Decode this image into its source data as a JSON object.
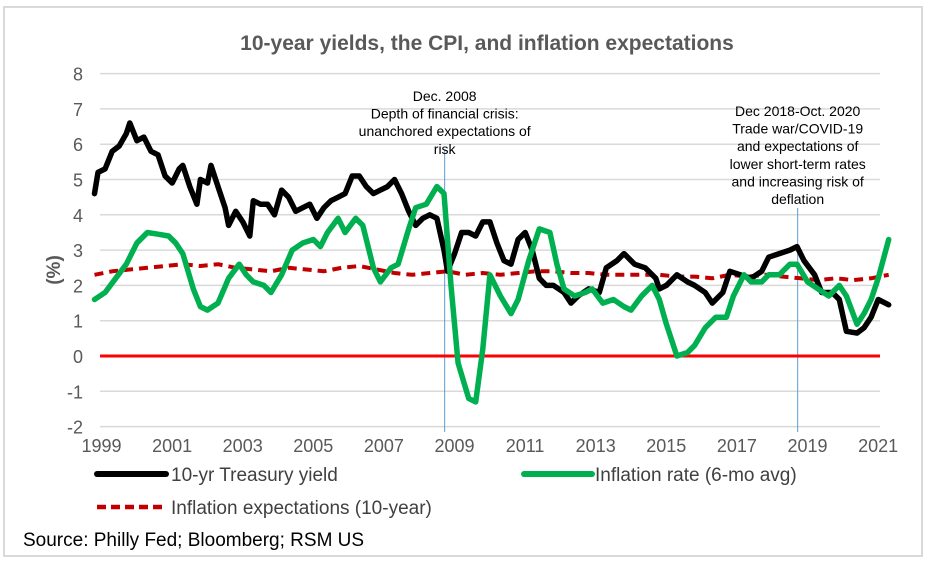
{
  "chart_data": {
    "type": "line",
    "title": "10-year yields, the CPI, and inflation expectations",
    "xlabel": "",
    "ylabel": "(%)",
    "ylim": [
      -2,
      8
    ],
    "xlim": [
      1999,
      2021.6
    ],
    "yticks": [
      "8",
      "7",
      "6",
      "5",
      "4",
      "3",
      "2",
      "1",
      "0",
      "-1",
      "-2"
    ],
    "ytick_values": [
      8,
      7,
      6,
      5,
      4,
      3,
      2,
      1,
      0,
      -1,
      -2
    ],
    "xticks": [
      "1999",
      "2001",
      "2003",
      "2005",
      "2007",
      "2009",
      "2011",
      "2013",
      "2015",
      "2017",
      "2019",
      "2021"
    ],
    "xtick_values": [
      1999,
      2001,
      2003,
      2005,
      2007,
      2009,
      2011,
      2013,
      2015,
      2017,
      2019,
      2021
    ],
    "grid": true,
    "legend_position": "bottom",
    "zero_line_color": "#ff0000",
    "series": [
      {
        "name": "10-yr Treasury yield",
        "color": "#000000",
        "style": "solid",
        "x": [
          1999.0,
          1999.1,
          1999.3,
          1999.5,
          1999.7,
          1999.9,
          2000.0,
          2000.2,
          2000.4,
          2000.6,
          2000.8,
          2001.0,
          2001.2,
          2001.4,
          2001.5,
          2001.7,
          2001.9,
          2002.0,
          2002.2,
          2002.3,
          2002.5,
          2002.7,
          2002.8,
          2003.0,
          2003.2,
          2003.4,
          2003.5,
          2003.7,
          2003.9,
          2004.1,
          2004.3,
          2004.5,
          2004.7,
          2004.9,
          2005.1,
          2005.3,
          2005.5,
          2005.7,
          2005.9,
          2006.1,
          2006.3,
          2006.5,
          2006.7,
          2006.9,
          2007.1,
          2007.3,
          2007.5,
          2007.7,
          2007.9,
          2008.1,
          2008.3,
          2008.5,
          2008.7,
          2008.9,
          2009.0,
          2009.2,
          2009.4,
          2009.6,
          2009.8,
          2010.0,
          2010.2,
          2010.4,
          2010.6,
          2010.8,
          2011.0,
          2011.2,
          2011.4,
          2011.6,
          2011.8,
          2012.0,
          2012.3,
          2012.5,
          2012.7,
          2013.0,
          2013.3,
          2013.5,
          2013.8,
          2014.0,
          2014.3,
          2014.6,
          2014.9,
          2015.0,
          2015.2,
          2015.5,
          2015.8,
          2016.0,
          2016.3,
          2016.5,
          2016.8,
          2017.0,
          2017.3,
          2017.6,
          2017.9,
          2018.1,
          2018.4,
          2018.7,
          2018.9,
          2019.1,
          2019.4,
          2019.6,
          2019.9,
          2020.1,
          2020.3,
          2020.6,
          2020.8,
          2021.0,
          2021.2,
          2021.5
        ],
        "values": [
          4.6,
          5.2,
          5.3,
          5.8,
          5.95,
          6.3,
          6.6,
          6.1,
          6.2,
          5.8,
          5.7,
          5.1,
          4.9,
          5.3,
          5.4,
          4.8,
          4.3,
          5.0,
          4.9,
          5.4,
          4.8,
          4.2,
          3.7,
          4.1,
          3.8,
          3.4,
          4.4,
          4.3,
          4.3,
          4.0,
          4.7,
          4.5,
          4.1,
          4.2,
          4.3,
          3.9,
          4.2,
          4.4,
          4.5,
          4.6,
          5.1,
          5.1,
          4.8,
          4.6,
          4.7,
          4.8,
          5.0,
          4.6,
          4.1,
          3.7,
          3.9,
          4.0,
          3.9,
          3.0,
          2.4,
          2.9,
          3.5,
          3.5,
          3.4,
          3.8,
          3.8,
          3.2,
          2.7,
          2.6,
          3.3,
          3.5,
          3.0,
          2.2,
          2.0,
          2.0,
          1.8,
          1.5,
          1.7,
          1.9,
          1.8,
          2.5,
          2.7,
          2.9,
          2.6,
          2.5,
          2.2,
          1.9,
          2.0,
          2.3,
          2.1,
          2.0,
          1.8,
          1.5,
          1.8,
          2.4,
          2.3,
          2.2,
          2.4,
          2.8,
          2.9,
          3.0,
          3.1,
          2.7,
          2.3,
          1.8,
          1.8,
          1.6,
          0.7,
          0.65,
          0.8,
          1.1,
          1.6,
          1.45
        ]
      },
      {
        "name": "Inflation rate (6-mo avg)",
        "color": "#00b050",
        "style": "solid",
        "x": [
          1999.0,
          1999.3,
          1999.6,
          1999.9,
          2000.2,
          2000.5,
          2000.8,
          2001.1,
          2001.3,
          2001.5,
          2001.8,
          2002.0,
          2002.2,
          2002.5,
          2002.8,
          2003.1,
          2003.3,
          2003.5,
          2003.8,
          2004.0,
          2004.3,
          2004.6,
          2004.9,
          2005.2,
          2005.4,
          2005.6,
          2005.9,
          2006.1,
          2006.4,
          2006.6,
          2006.9,
          2007.1,
          2007.4,
          2007.6,
          2007.9,
          2008.1,
          2008.4,
          2008.7,
          2008.9,
          2009.1,
          2009.3,
          2009.6,
          2009.8,
          2010.0,
          2010.2,
          2010.5,
          2010.8,
          2011.0,
          2011.3,
          2011.6,
          2011.9,
          2012.1,
          2012.3,
          2012.6,
          2012.9,
          2013.1,
          2013.4,
          2013.7,
          2014.0,
          2014.2,
          2014.5,
          2014.8,
          2015.0,
          2015.2,
          2015.5,
          2015.8,
          2016.0,
          2016.3,
          2016.6,
          2016.9,
          2017.1,
          2017.4,
          2017.6,
          2017.9,
          2018.1,
          2018.4,
          2018.7,
          2018.9,
          2019.2,
          2019.5,
          2019.8,
          2020.1,
          2020.3,
          2020.6,
          2020.8,
          2021.0,
          2021.2,
          2021.5
        ],
        "values": [
          1.6,
          1.8,
          2.2,
          2.6,
          3.2,
          3.5,
          3.45,
          3.4,
          3.2,
          2.9,
          1.9,
          1.4,
          1.3,
          1.5,
          2.2,
          2.6,
          2.3,
          2.1,
          2.0,
          1.8,
          2.3,
          3.0,
          3.2,
          3.3,
          3.1,
          3.5,
          3.9,
          3.5,
          3.9,
          3.7,
          2.5,
          2.1,
          2.5,
          2.6,
          3.6,
          4.2,
          4.3,
          4.8,
          4.6,
          2.0,
          -0.2,
          -1.2,
          -1.3,
          0.2,
          2.3,
          1.7,
          1.2,
          1.6,
          2.7,
          3.6,
          3.5,
          2.6,
          1.9,
          1.7,
          1.8,
          1.9,
          1.5,
          1.6,
          1.4,
          1.3,
          1.7,
          2.0,
          1.6,
          0.9,
          0.0,
          0.1,
          0.3,
          0.8,
          1.1,
          1.1,
          1.7,
          2.3,
          2.1,
          2.1,
          2.3,
          2.3,
          2.6,
          2.6,
          2.1,
          1.9,
          1.7,
          2.0,
          1.7,
          0.9,
          1.2,
          1.6,
          2.2,
          3.3
        ]
      },
      {
        "name": "Inflation expectations (10-year)",
        "color": "#c00000",
        "style": "dashed",
        "x": [
          1999.0,
          1999.5,
          2000.0,
          2000.5,
          2001.0,
          2001.5,
          2002.0,
          2002.5,
          2003.0,
          2003.5,
          2004.0,
          2004.5,
          2005.0,
          2005.5,
          2006.0,
          2006.5,
          2007.0,
          2007.5,
          2008.0,
          2008.5,
          2009.0,
          2009.5,
          2010.0,
          2010.5,
          2011.0,
          2011.5,
          2012.0,
          2012.5,
          2013.0,
          2013.5,
          2014.0,
          2014.5,
          2015.0,
          2015.5,
          2016.0,
          2016.5,
          2017.0,
          2017.5,
          2018.0,
          2018.5,
          2019.0,
          2019.5,
          2020.0,
          2020.5,
          2021.0,
          2021.5
        ],
        "values": [
          2.3,
          2.4,
          2.45,
          2.5,
          2.55,
          2.6,
          2.55,
          2.6,
          2.5,
          2.45,
          2.4,
          2.5,
          2.45,
          2.4,
          2.5,
          2.55,
          2.45,
          2.35,
          2.3,
          2.35,
          2.4,
          2.3,
          2.35,
          2.3,
          2.35,
          2.4,
          2.4,
          2.35,
          2.35,
          2.3,
          2.3,
          2.3,
          2.3,
          2.25,
          2.25,
          2.2,
          2.3,
          2.25,
          2.3,
          2.25,
          2.2,
          2.15,
          2.2,
          2.15,
          2.2,
          2.3
        ]
      }
    ],
    "annotations": [
      {
        "x": 2008.92,
        "lines": [
          "Dec. 2008",
          "Depth of financial crisis:",
          "unanchored expectations of",
          "risk"
        ]
      },
      {
        "x": 2018.92,
        "lines": [
          "Dec 2018-Oct. 2020",
          "Trade war/COVID-19",
          "and expectations of",
          "lower short-term rates",
          "and increasing risk of",
          "deflation"
        ]
      }
    ],
    "source": "Source: Philly Fed; Bloomberg; RSM US"
  }
}
